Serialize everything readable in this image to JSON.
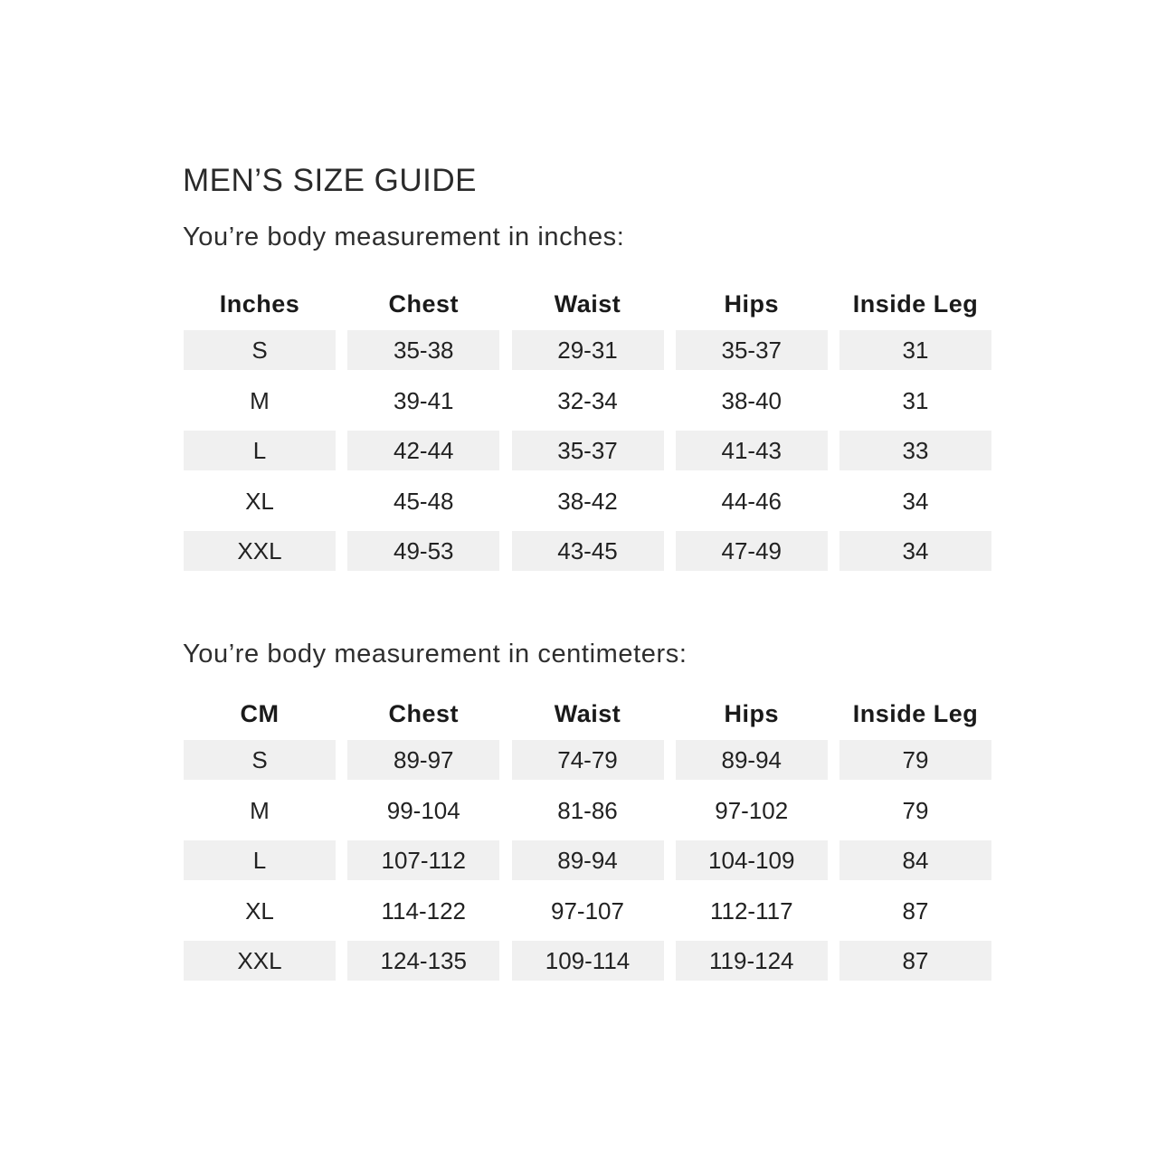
{
  "title": "MEN’S SIZE GUIDE",
  "colors": {
    "shaded_cell": "#f0f0f0",
    "text": "#222222"
  },
  "tables": [
    {
      "subtitle": "You’re body measurement in inches:",
      "headers": [
        "Inches",
        "Chest",
        "Waist",
        "Hips",
        "Inside Leg"
      ],
      "rows": [
        [
          "S",
          "35-38",
          "29-31",
          "35-37",
          "31"
        ],
        [
          "M",
          "39-41",
          "32-34",
          "38-40",
          "31"
        ],
        [
          "L",
          "42-44",
          "35-37",
          "41-43",
          "33"
        ],
        [
          "XL",
          "45-48",
          "38-42",
          "44-46",
          "34"
        ],
        [
          "XXL",
          "49-53",
          "43-45",
          "47-49",
          "34"
        ]
      ]
    },
    {
      "subtitle": "You’re body measurement in centimeters:",
      "headers": [
        "CM",
        "Chest",
        "Waist",
        "Hips",
        "Inside Leg"
      ],
      "rows": [
        [
          "S",
          "89-97",
          "74-79",
          "89-94",
          "79"
        ],
        [
          "M",
          "99-104",
          "81-86",
          "97-102",
          "79"
        ],
        [
          "L",
          "107-112",
          "89-94",
          "104-109",
          "84"
        ],
        [
          "XL",
          "114-122",
          "97-107",
          "112-117",
          "87"
        ],
        [
          "XXL",
          "124-135",
          "109-114",
          "119-124",
          "87"
        ]
      ]
    }
  ]
}
